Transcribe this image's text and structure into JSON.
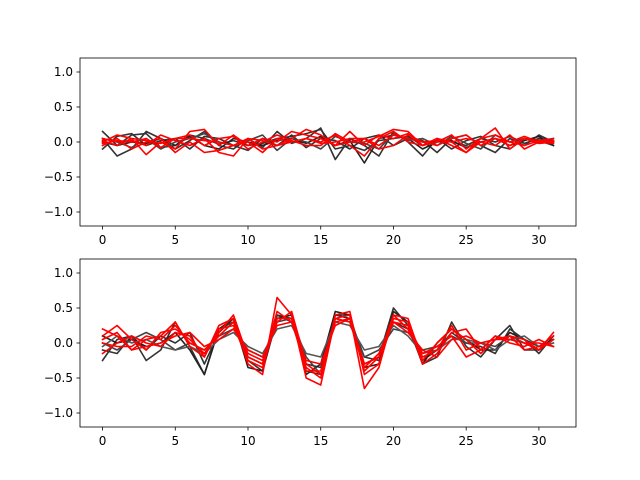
{
  "chart_data": [
    {
      "type": "line",
      "title": "",
      "xlabel": "",
      "ylabel": "",
      "xlim": [
        -1.55,
        32.55
      ],
      "ylim": [
        -1.2,
        1.2
      ],
      "xticks": [
        0,
        5,
        10,
        15,
        20,
        25,
        30
      ],
      "yticks": [
        -1.0,
        -0.5,
        0.0,
        0.5,
        1.0
      ],
      "xticklabels": [
        "0",
        "5",
        "10",
        "15",
        "20",
        "25",
        "30"
      ],
      "yticklabels": [
        "−1.0",
        "−0.5",
        "0.0",
        "0.5",
        "1.0"
      ],
      "grid": false,
      "x": [
        0,
        1,
        2,
        3,
        4,
        5,
        6,
        7,
        8,
        9,
        10,
        11,
        12,
        13,
        14,
        15,
        16,
        17,
        18,
        19,
        20,
        21,
        22,
        23,
        24,
        25,
        26,
        27,
        28,
        29,
        30,
        31
      ],
      "series": [
        {
          "color": "#333333",
          "values": [
            0.15,
            -0.05,
            0.1,
            0.12,
            -0.08,
            -0.05,
            0.1,
            0.05,
            -0.03,
            0.02,
            -0.05,
            -0.02,
            0.05,
            0.08,
            0.12,
            0.18,
            -0.1,
            -0.05,
            -0.12,
            0.02,
            0.05,
            0.08,
            -0.05,
            0.03,
            0.0,
            -0.05,
            0.05,
            0.0,
            0.08,
            -0.02,
            0.05,
            0.02
          ]
        },
        {
          "color": "#333333",
          "values": [
            0.05,
            -0.2,
            -0.1,
            0.15,
            0.05,
            -0.1,
            0.02,
            0.15,
            -0.05,
            -0.1,
            0.05,
            -0.08,
            0.15,
            -0.02,
            0.05,
            0.2,
            -0.25,
            0.05,
            -0.05,
            -0.2,
            0.15,
            0.0,
            -0.2,
            0.05,
            -0.1,
            0.02,
            0.08,
            -0.05,
            -0.1,
            0.05,
            0.02,
            -0.05
          ]
        },
        {
          "color": "#333333",
          "values": [
            -0.1,
            0.08,
            0.12,
            -0.05,
            0.02,
            0.05,
            -0.1,
            0.08,
            0.05,
            -0.05,
            -0.12,
            0.05,
            -0.05,
            0.1,
            -0.08,
            0.05,
            0.02,
            -0.1,
            0.05,
            0.1,
            -0.05,
            0.05,
            0.02,
            -0.15,
            0.05,
            0.1,
            -0.05,
            -0.15,
            0.05,
            -0.05,
            0.1,
            0.0
          ]
        },
        {
          "color": "#222222",
          "values": [
            0.0,
            -0.05,
            0.0,
            -0.02,
            0.05,
            -0.05,
            0.08,
            -0.05,
            -0.1,
            0.05,
            0.0,
            -0.05,
            0.02,
            0.05,
            -0.02,
            0.08,
            -0.05,
            0.02,
            -0.3,
            0.05,
            0.1,
            0.05,
            -0.1,
            0.0,
            0.02,
            -0.08,
            0.0,
            0.05,
            -0.05,
            0.02,
            0.08,
            -0.05
          ]
        },
        {
          "color": "#444444",
          "values": [
            0.05,
            0.0,
            -0.08,
            0.05,
            -0.1,
            0.0,
            0.05,
            0.12,
            0.0,
            -0.05,
            0.02,
            0.1,
            -0.12,
            0.05,
            0.0,
            -0.1,
            0.08,
            0.0,
            -0.02,
            -0.1,
            0.12,
            0.02,
            0.05,
            -0.05,
            0.08,
            -0.02,
            -0.1,
            0.1,
            0.0,
            0.05,
            -0.02,
            0.05
          ]
        },
        {
          "color": "#ff0000",
          "values": [
            0.0,
            0.1,
            0.05,
            -0.18,
            0.0,
            -0.1,
            0.15,
            0.18,
            -0.05,
            0.1,
            -0.05,
            0.05,
            0.0,
            0.15,
            0.1,
            0.05,
            -0.05,
            0.15,
            -0.05,
            0.1,
            0.05,
            0.12,
            -0.05,
            0.0,
            0.1,
            -0.1,
            0.05,
            0.2,
            -0.1,
            0.05,
            0.02,
            0.0
          ]
        },
        {
          "color": "#ff0000",
          "values": [
            -0.05,
            0.05,
            -0.1,
            0.0,
            0.05,
            -0.15,
            0.0,
            -0.15,
            -0.12,
            -0.05,
            0.0,
            -0.15,
            0.05,
            0.0,
            0.05,
            0.0,
            0.1,
            -0.05,
            -0.2,
            0.05,
            0.15,
            0.0,
            -0.05,
            0.05,
            -0.05,
            -0.15,
            0.0,
            -0.05,
            0.1,
            -0.1,
            0.0,
            -0.02
          ]
        },
        {
          "color": "#ff0000",
          "values": [
            0.05,
            0.0,
            0.02,
            -0.05,
            0.1,
            0.02,
            -0.05,
            0.05,
            -0.15,
            -0.2,
            0.05,
            -0.1,
            -0.05,
            0.05,
            0.18,
            0.1,
            -0.05,
            0.0,
            0.05,
            -0.1,
            -0.05,
            0.1,
            0.0,
            -0.05,
            0.05,
            0.1,
            -0.05,
            0.05,
            -0.05,
            0.05,
            -0.02,
            0.0
          ]
        },
        {
          "color": "#ff0000",
          "values": [
            0.02,
            -0.05,
            0.05,
            0.02,
            -0.02,
            0.05,
            0.1,
            -0.05,
            0.05,
            0.08,
            -0.1,
            0.0,
            0.1,
            0.02,
            -0.05,
            -0.05,
            0.12,
            0.0,
            0.0,
            0.08,
            0.18,
            0.15,
            -0.05,
            0.05,
            0.0,
            0.05,
            0.0,
            0.05,
            0.0,
            -0.05,
            0.02,
            0.05
          ]
        },
        {
          "color": "#ff0000",
          "values": [
            -0.02,
            0.02,
            0.0,
            0.05,
            -0.08,
            0.05,
            0.05,
            0.02,
            0.0,
            -0.05,
            0.05,
            0.02,
            -0.05,
            0.0,
            0.05,
            -0.02,
            0.0,
            0.05,
            0.05,
            -0.05,
            0.1,
            0.05,
            0.0,
            0.02,
            0.0,
            -0.15,
            0.05,
            0.1,
            0.0,
            0.08,
            0.0,
            0.02
          ]
        }
      ]
    },
    {
      "type": "line",
      "title": "",
      "xlabel": "",
      "ylabel": "",
      "xlim": [
        -1.55,
        32.55
      ],
      "ylim": [
        -1.2,
        1.2
      ],
      "xticks": [
        0,
        5,
        10,
        15,
        20,
        25,
        30
      ],
      "yticks": [
        -1.0,
        -0.5,
        0.0,
        0.5,
        1.0
      ],
      "xticklabels": [
        "0",
        "5",
        "10",
        "15",
        "20",
        "25",
        "30"
      ],
      "yticklabels": [
        "−1.0",
        "−0.5",
        "0.0",
        "0.5",
        "1.0"
      ],
      "grid": false,
      "x": [
        0,
        1,
        2,
        3,
        4,
        5,
        6,
        7,
        8,
        9,
        10,
        11,
        12,
        13,
        14,
        15,
        16,
        17,
        18,
        19,
        20,
        21,
        22,
        23,
        24,
        25,
        26,
        27,
        28,
        29,
        30,
        31
      ],
      "series": [
        {
          "color": "#333333",
          "values": [
            -0.25,
            0.05,
            0.1,
            -0.25,
            -0.1,
            0.3,
            -0.05,
            -0.45,
            0.2,
            0.3,
            -0.2,
            -0.3,
            0.4,
            0.35,
            -0.4,
            -0.45,
            0.4,
            0.4,
            -0.3,
            -0.2,
            0.5,
            0.25,
            -0.3,
            -0.2,
            0.3,
            -0.05,
            -0.2,
            0.05,
            0.25,
            -0.1,
            -0.1,
            0.05
          ]
        },
        {
          "color": "#333333",
          "values": [
            -0.1,
            -0.15,
            0.1,
            -0.1,
            0.1,
            0.0,
            0.15,
            -0.3,
            0.15,
            0.35,
            -0.25,
            -0.4,
            0.4,
            0.3,
            -0.3,
            -0.35,
            0.4,
            0.35,
            -0.2,
            -0.25,
            0.3,
            0.2,
            -0.25,
            -0.1,
            0.15,
            0.0,
            -0.05,
            -0.15,
            0.2,
            0.05,
            -0.15,
            0.1
          ]
        },
        {
          "color": "#222222",
          "values": [
            0.1,
            0.0,
            0.05,
            -0.05,
            0.0,
            0.15,
            -0.1,
            -0.45,
            0.2,
            0.35,
            -0.35,
            -0.4,
            0.35,
            0.4,
            -0.45,
            -0.3,
            0.45,
            0.4,
            -0.35,
            -0.3,
            0.45,
            0.3,
            -0.3,
            0.0,
            0.2,
            0.05,
            -0.1,
            -0.1,
            0.15,
            0.05,
            -0.05,
            0.05
          ]
        },
        {
          "color": "#444444",
          "values": [
            0.0,
            -0.1,
            0.05,
            0.15,
            0.05,
            -0.1,
            0.0,
            -0.1,
            0.1,
            0.2,
            -0.1,
            -0.2,
            0.3,
            0.35,
            -0.2,
            -0.45,
            0.35,
            0.3,
            -0.2,
            -0.1,
            0.2,
            0.15,
            -0.1,
            -0.05,
            0.1,
            0.0,
            0.0,
            -0.05,
            0.1,
            0.0,
            -0.1,
            0.05
          ]
        },
        {
          "color": "#555555",
          "values": [
            -0.05,
            0.1,
            0.0,
            0.05,
            -0.05,
            -0.1,
            -0.05,
            -0.15,
            0.05,
            0.15,
            -0.05,
            -0.15,
            0.2,
            0.25,
            -0.15,
            -0.2,
            0.3,
            0.25,
            -0.1,
            -0.05,
            0.25,
            0.1,
            -0.15,
            -0.1,
            0.05,
            0.05,
            0.0,
            -0.1,
            0.05,
            0.1,
            -0.05,
            0.0
          ]
        },
        {
          "color": "#ff0000",
          "values": [
            0.2,
            0.1,
            -0.1,
            0.05,
            0.1,
            0.3,
            -0.05,
            -0.2,
            0.25,
            0.35,
            -0.3,
            -0.45,
            0.65,
            0.4,
            -0.5,
            -0.6,
            0.35,
            0.4,
            -0.65,
            -0.35,
            0.4,
            0.35,
            -0.25,
            0.0,
            0.2,
            0.05,
            -0.15,
            0.05,
            0.1,
            -0.1,
            -0.05,
            0.1
          ]
        },
        {
          "color": "#ff0000",
          "values": [
            0.1,
            0.25,
            0.05,
            -0.1,
            0.15,
            0.2,
            0.05,
            -0.15,
            0.15,
            0.4,
            -0.2,
            -0.3,
            0.45,
            0.3,
            -0.35,
            -0.5,
            0.4,
            0.45,
            -0.45,
            -0.3,
            0.35,
            0.3,
            -0.3,
            -0.15,
            0.15,
            0.2,
            -0.1,
            0.1,
            0.05,
            0.0,
            -0.1,
            0.15
          ]
        },
        {
          "color": "#ff0000",
          "values": [
            -0.15,
            0.0,
            0.1,
            0.0,
            -0.05,
            0.15,
            0.1,
            -0.2,
            0.2,
            0.25,
            -0.25,
            -0.35,
            0.35,
            0.35,
            -0.4,
            -0.4,
            0.3,
            0.35,
            -0.4,
            -0.2,
            0.4,
            0.2,
            -0.2,
            -0.1,
            0.25,
            -0.1,
            0.0,
            0.05,
            0.1,
            0.05,
            -0.1,
            0.05
          ]
        },
        {
          "color": "#ff0000",
          "values": [
            0.0,
            -0.05,
            -0.05,
            0.1,
            0.05,
            0.25,
            0.0,
            -0.1,
            0.1,
            0.3,
            -0.15,
            -0.25,
            0.3,
            0.45,
            -0.3,
            -0.45,
            0.35,
            0.3,
            -0.35,
            -0.15,
            0.3,
            0.25,
            -0.15,
            -0.05,
            0.1,
            -0.2,
            -0.1,
            0.1,
            0.0,
            -0.05,
            0.05,
            -0.05
          ]
        },
        {
          "color": "#ff0000",
          "values": [
            0.05,
            0.15,
            -0.1,
            -0.05,
            0.0,
            0.1,
            0.15,
            -0.05,
            0.05,
            0.2,
            -0.1,
            -0.2,
            0.25,
            0.3,
            -0.25,
            -0.3,
            0.25,
            0.35,
            -0.3,
            -0.2,
            0.3,
            0.15,
            -0.1,
            -0.2,
            0.05,
            0.1,
            0.0,
            0.05,
            0.05,
            0.0,
            0.0,
            -0.05
          ]
        }
      ]
    }
  ]
}
